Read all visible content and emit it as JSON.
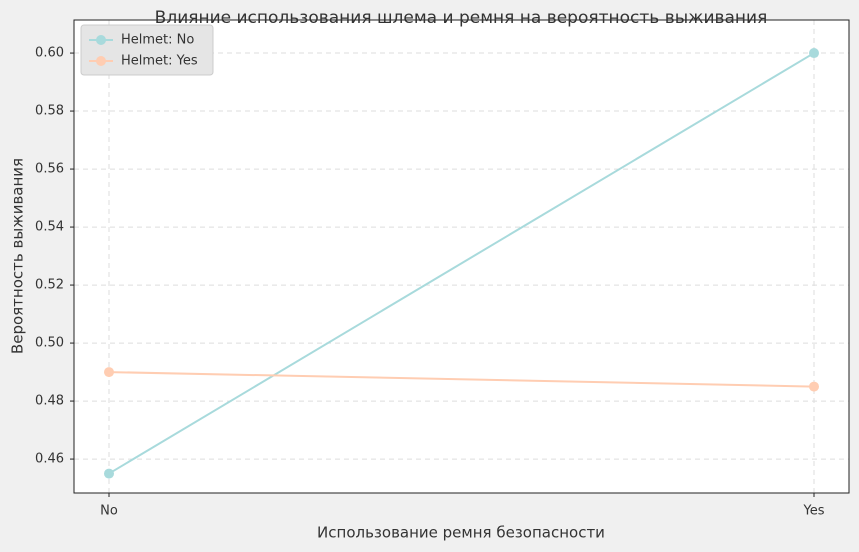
{
  "chart_data": {
    "type": "line",
    "title": "Влияние использования шлема и ремня на вероятность выживания",
    "x_label": "Использование ремня безопасности",
    "y_label": "Вероятность выживания",
    "categories": [
      "No",
      "Yes"
    ],
    "series": [
      {
        "name": "Helmet: No",
        "color": "#a8dadc",
        "values": [
          0.455,
          0.6
        ]
      },
      {
        "name": "Helmet: Yes",
        "color": "#ffcdb2",
        "values": [
          0.49,
          0.485
        ]
      }
    ],
    "ylim": [
      0.4483,
      0.6114
    ],
    "yticks": [
      0.46,
      0.48,
      {
        "value": 0.5,
        "label": "0.50"
      },
      0.52,
      0.54,
      0.56,
      0.58,
      {
        "value": 0.6,
        "label": "0.60"
      }
    ],
    "grid": true,
    "legend": "upper left"
  }
}
